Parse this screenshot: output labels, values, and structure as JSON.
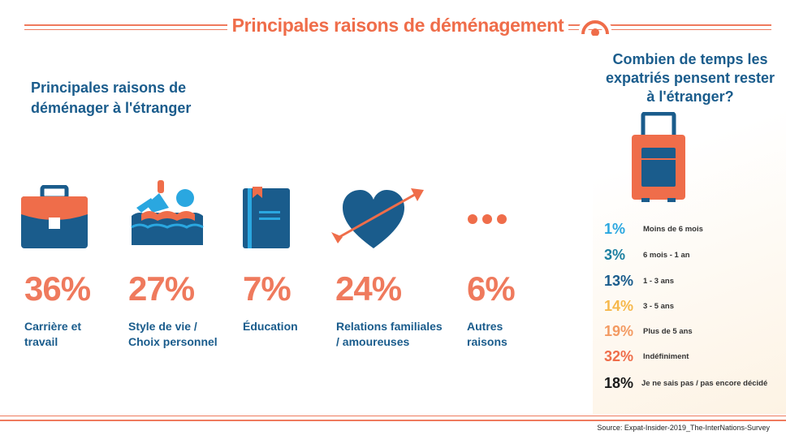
{
  "header": {
    "title": "Principales raisons de déménagement"
  },
  "reasons_section": {
    "title": "Principales raisons de déménager à l'étranger"
  },
  "duration_section": {
    "title": "Combien de temps les expatriés pensent rester à l'étranger?"
  },
  "colors": {
    "orange": "#ef6d4a",
    "blue": "#1a5c8c",
    "light_blue": "#2aa7e0",
    "teal": "#1a7fa0",
    "yellow": "#f6b84b",
    "peach": "#f39a62",
    "black": "#1a1a1a"
  },
  "chart_data": [
    {
      "type": "table",
      "title": "Principales raisons de déménager à l'étranger",
      "categories": [
        "Carrière et travail",
        "Style de vie / Choix personnel",
        "Éducation",
        "Relations familiales / amoureuses",
        "Autres raisons"
      ],
      "values": [
        36,
        27,
        7,
        24,
        6
      ],
      "labels": [
        "36%",
        "27%",
        "7%",
        "24%",
        "6%"
      ],
      "label_lines": [
        [
          "Carrière et",
          "travail"
        ],
        [
          "Style de vie /",
          "Choix personnel"
        ],
        [
          "Éducation"
        ],
        [
          "Relations familiales",
          "/ amoureuses"
        ],
        [
          "Autres",
          "raisons"
        ]
      ],
      "icons": [
        "briefcase-icon",
        "swimmer-icon",
        "book-icon",
        "heart-arrow-icon",
        "dots-icon"
      ]
    },
    {
      "type": "table",
      "title": "Combien de temps les expatriés pensent rester à l'étranger?",
      "categories": [
        "Moins de 6 mois",
        "6 mois - 1 an",
        "1 - 3 ans",
        "3 - 5 ans",
        "Plus de 5 ans",
        "Indéfiniment",
        "Je ne sais pas / pas encore décidé"
      ],
      "values": [
        1,
        3,
        13,
        14,
        19,
        32,
        18
      ],
      "labels": [
        "1%",
        "3%",
        "13%",
        "14%",
        "19%",
        "32%",
        "18%"
      ],
      "colors": [
        "#2aa7e0",
        "#1a7fa0",
        "#1a5c8c",
        "#f6b84b",
        "#f39a62",
        "#ef6d4a",
        "#1a1a1a"
      ]
    }
  ],
  "footer": {
    "source": "Source: Expat-Insider-2019_The-InterNations-Survey"
  }
}
